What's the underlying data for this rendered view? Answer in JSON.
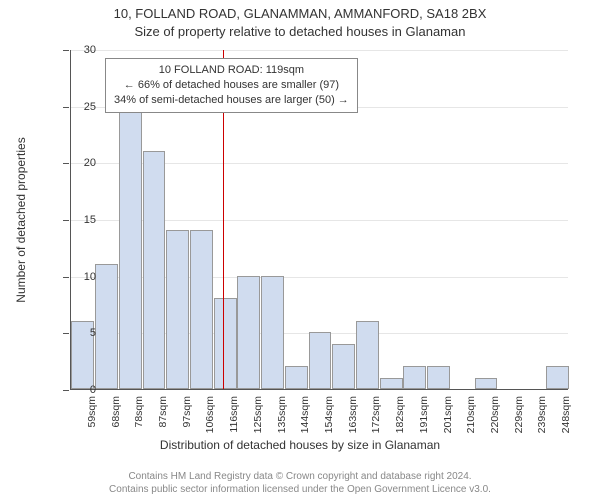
{
  "title_line1": "10, FOLLAND ROAD, GLANAMMAN, AMMANFORD, SA18 2BX",
  "title_line2": "Size of property relative to detached houses in Glanaman",
  "y_axis_label": "Number of detached properties",
  "x_axis_label": "Distribution of detached houses by size in Glanaman",
  "chart": {
    "type": "bar",
    "ylim_max": 30,
    "ytick_step": 5,
    "bar_fill": "#d0dcef",
    "bar_border": "#999999",
    "grid_color": "#e6e6e6",
    "background_color": "#ffffff",
    "marker_color": "#cc0000",
    "categories": [
      "59sqm",
      "68sqm",
      "78sqm",
      "87sqm",
      "97sqm",
      "106sqm",
      "116sqm",
      "125sqm",
      "135sqm",
      "144sqm",
      "154sqm",
      "163sqm",
      "172sqm",
      "182sqm",
      "191sqm",
      "201sqm",
      "210sqm",
      "220sqm",
      "229sqm",
      "239sqm",
      "248sqm"
    ],
    "values": [
      6,
      11,
      25,
      21,
      14,
      14,
      8,
      10,
      10,
      2,
      5,
      4,
      6,
      1,
      2,
      2,
      0,
      1,
      0,
      0,
      2
    ],
    "marker_index": 6.4
  },
  "annotation": {
    "line1": "10 FOLLAND ROAD: 119sqm",
    "line2": "← 66% of detached houses are smaller (97)",
    "line3": "34% of semi-detached houses are larger (50) →"
  },
  "footer_line1": "Contains HM Land Registry data © Crown copyright and database right 2024.",
  "footer_line2": "Contains public sector information licensed under the Open Government Licence v3.0."
}
